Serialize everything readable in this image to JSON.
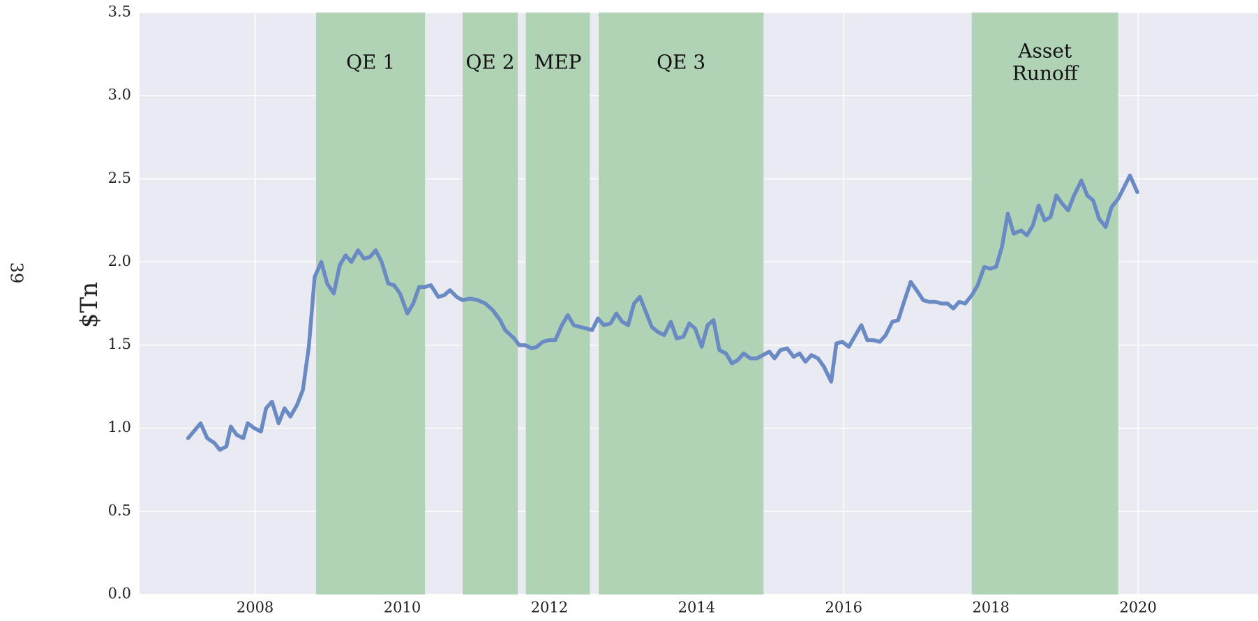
{
  "page_number": "39",
  "chart_data": {
    "type": "line",
    "ylabel": "$Tn",
    "xlim": [
      2006.43,
      2021.63
    ],
    "ylim": [
      0,
      3.5
    ],
    "xticks": [
      2008,
      2010,
      2012,
      2014,
      2016,
      2018,
      2020
    ],
    "yticks": [
      {
        "value": 0,
        "label": "0.0"
      },
      0.5,
      {
        "value": 1,
        "label": "1.0"
      },
      1.5,
      {
        "value": 2,
        "label": "2.0"
      },
      2.5,
      {
        "value": 3,
        "label": "3.0"
      },
      3.5
    ],
    "grid": true,
    "background": "#eaeaf2",
    "region_color": "#b0d3b5",
    "regions": [
      {
        "label": [
          "QE 1"
        ],
        "start": 2008.83,
        "end": 2010.31
      },
      {
        "label": [
          "QE 2"
        ],
        "start": 2010.82,
        "end": 2011.57
      },
      {
        "label": [
          "MEP"
        ],
        "start": 2011.68,
        "end": 2012.55
      },
      {
        "label": [
          "QE 3"
        ],
        "start": 2012.67,
        "end": 2014.91
      },
      {
        "label": [
          "Asset",
          "Runoff"
        ],
        "start": 2017.74,
        "end": 2019.73
      }
    ],
    "x": [
      2007.09,
      2007.26,
      2007.35,
      2007.45,
      2007.52,
      2007.61,
      2007.67,
      2007.75,
      2007.84,
      2007.9,
      2007.99,
      2008.08,
      2008.15,
      2008.23,
      2008.32,
      2008.4,
      2008.48,
      2008.57,
      2008.65,
      2008.73,
      2008.81,
      2008.9,
      2008.98,
      2009.07,
      2009.15,
      2009.23,
      2009.31,
      2009.4,
      2009.48,
      2009.56,
      2009.64,
      2009.72,
      2009.81,
      2009.89,
      2009.97,
      2010.07,
      2010.15,
      2010.23,
      2010.31,
      2010.39,
      2010.49,
      2010.57,
      2010.65,
      2010.74,
      2010.82,
      2010.92,
      2011.03,
      2011.13,
      2011.23,
      2011.33,
      2011.4,
      2011.52,
      2011.59,
      2011.67,
      2011.76,
      2011.83,
      2011.91,
      2012.0,
      2012.08,
      2012.17,
      2012.25,
      2012.33,
      2012.41,
      2012.5,
      2012.58,
      2012.66,
      2012.74,
      2012.83,
      2012.91,
      2012.99,
      2013.07,
      2013.15,
      2013.23,
      2013.32,
      2013.39,
      2013.47,
      2013.56,
      2013.65,
      2013.73,
      2013.82,
      2013.9,
      2013.98,
      2014.07,
      2014.15,
      2014.23,
      2014.31,
      2014.4,
      2014.48,
      2014.56,
      2014.64,
      2014.73,
      2014.82,
      2014.9,
      2014.99,
      2015.06,
      2015.14,
      2015.23,
      2015.32,
      2015.4,
      2015.48,
      2015.56,
      2015.65,
      2015.73,
      2015.83,
      2015.9,
      2015.98,
      2016.07,
      2016.16,
      2016.24,
      2016.32,
      2016.4,
      2016.49,
      2016.57,
      2016.66,
      2016.74,
      2016.82,
      2016.91,
      2016.99,
      2017.08,
      2017.16,
      2017.25,
      2017.33,
      2017.41,
      2017.49,
      2017.57,
      2017.65,
      2017.74,
      2017.82,
      2017.91,
      2017.99,
      2018.07,
      2018.15,
      2018.23,
      2018.31,
      2018.41,
      2018.49,
      2018.57,
      2018.65,
      2018.73,
      2018.81,
      2018.89,
      2018.97,
      2019.05,
      2019.13,
      2019.23,
      2019.31,
      2019.39,
      2019.47,
      2019.56,
      2019.64,
      2019.73,
      2019.81,
      2019.89,
      2019.99
    ],
    "series": [
      {
        "color": "#6a8ac4",
        "values": [
          0.94,
          1.03,
          0.94,
          0.91,
          0.87,
          0.89,
          1.01,
          0.96,
          0.94,
          1.03,
          1.0,
          0.98,
          1.12,
          1.16,
          1.03,
          1.12,
          1.07,
          1.14,
          1.23,
          1.49,
          1.91,
          2.0,
          1.87,
          1.81,
          1.98,
          2.04,
          2.0,
          2.07,
          2.02,
          2.03,
          2.07,
          2.0,
          1.87,
          1.86,
          1.81,
          1.69,
          1.75,
          1.85,
          1.85,
          1.86,
          1.79,
          1.8,
          1.83,
          1.79,
          1.77,
          1.78,
          1.77,
          1.75,
          1.71,
          1.65,
          1.59,
          1.54,
          1.5,
          1.5,
          1.48,
          1.49,
          1.52,
          1.53,
          1.53,
          1.62,
          1.68,
          1.62,
          1.61,
          1.6,
          1.59,
          1.66,
          1.62,
          1.63,
          1.69,
          1.64,
          1.62,
          1.75,
          1.79,
          1.69,
          1.61,
          1.58,
          1.56,
          1.64,
          1.54,
          1.55,
          1.63,
          1.6,
          1.49,
          1.62,
          1.65,
          1.47,
          1.45,
          1.39,
          1.41,
          1.45,
          1.42,
          1.42,
          1.44,
          1.46,
          1.42,
          1.47,
          1.48,
          1.43,
          1.45,
          1.4,
          1.44,
          1.42,
          1.37,
          1.28,
          1.51,
          1.52,
          1.49,
          1.56,
          1.62,
          1.53,
          1.53,
          1.52,
          1.56,
          1.64,
          1.65,
          1.76,
          1.88,
          1.83,
          1.77,
          1.76,
          1.76,
          1.75,
          1.75,
          1.72,
          1.76,
          1.75,
          1.8,
          1.86,
          1.97,
          1.96,
          1.97,
          2.09,
          2.29,
          2.17,
          2.19,
          2.16,
          2.22,
          2.34,
          2.25,
          2.27,
          2.4,
          2.35,
          2.31,
          2.4,
          2.49,
          2.4,
          2.37,
          2.26,
          2.21,
          2.33,
          2.38,
          2.45,
          2.52,
          2.42
        ]
      }
    ]
  }
}
